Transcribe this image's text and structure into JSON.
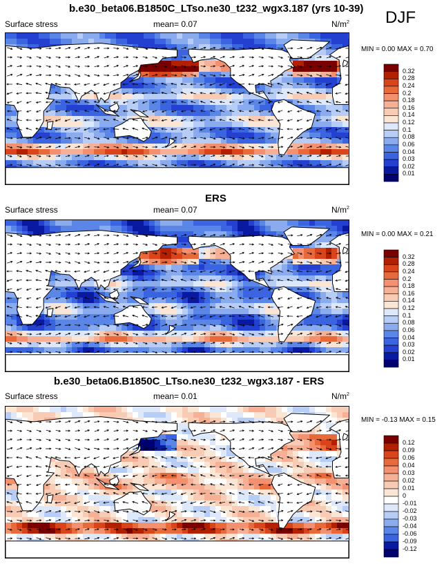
{
  "season": "DJF",
  "panels": [
    {
      "title": "b.e30_beta06.B1850C_LTso.ne30_t232_wgx3.187 (yrs 10-39)",
      "left_label": "Surface stress",
      "mean_label": "mean=  0.07",
      "units": "N/m",
      "units_sup": "2",
      "minmax": "MIN =  0.00 MAX =  0.70",
      "levels": [
        "0.32",
        "0.28",
        "0.24",
        "0.2",
        "0.18",
        "0.16",
        "0.14",
        "0.12",
        "0.1",
        "0.08",
        "0.06",
        "0.04",
        "0.03",
        "0.02",
        "0.01"
      ],
      "palette": "abs"
    },
    {
      "title": "ERS",
      "left_label": "Surface stress",
      "mean_label": "mean=  0.07",
      "units": "N/m",
      "units_sup": "2",
      "minmax": "MIN =  0.00 MAX =  0.21",
      "levels": [
        "0.32",
        "0.28",
        "0.24",
        "0.2",
        "0.18",
        "0.16",
        "0.14",
        "0.12",
        "0.1",
        "0.08",
        "0.06",
        "0.04",
        "0.03",
        "0.02",
        "0.01"
      ],
      "palette": "abs"
    },
    {
      "title": "b.e30_beta06.B1850C_LTso.ne30_t232_wgx3.187 - ERS",
      "left_label": "Surface stress",
      "mean_label": "mean=  0.01",
      "units": "N/m",
      "units_sup": "2",
      "minmax": "MIN = -0.13 MAX =  0.15",
      "levels": [
        "0.12",
        "0.09",
        "0.06",
        "0.04",
        "0.03",
        "0.02",
        "0.01",
        "0",
        "-0.01",
        "-0.02",
        "-0.03",
        "-0.04",
        "-0.06",
        "-0.09",
        "-0.12"
      ],
      "palette": "diff"
    }
  ],
  "colors": {
    "abs": [
      "#7a0000",
      "#b22000",
      "#d9441a",
      "#e86a3a",
      "#f29070",
      "#f5b096",
      "#f8ccb4",
      "#fbe6d6",
      "#dde8fb",
      "#b7cdf6",
      "#8aacef",
      "#5a86e8",
      "#3a64e0",
      "#2340d0",
      "#0a1aa0",
      "#000070"
    ],
    "diff": [
      "#7a0000",
      "#b22000",
      "#d9441a",
      "#e86a3a",
      "#f29070",
      "#f5b096",
      "#f8ccb4",
      "#fbe6d6",
      "#ffffff",
      "#dde8fb",
      "#b7cdf6",
      "#8aacef",
      "#5a86e8",
      "#3a64e0",
      "#0a1aa0",
      "#000070"
    ],
    "land": "#ffffff",
    "coast": "#000000"
  }
}
